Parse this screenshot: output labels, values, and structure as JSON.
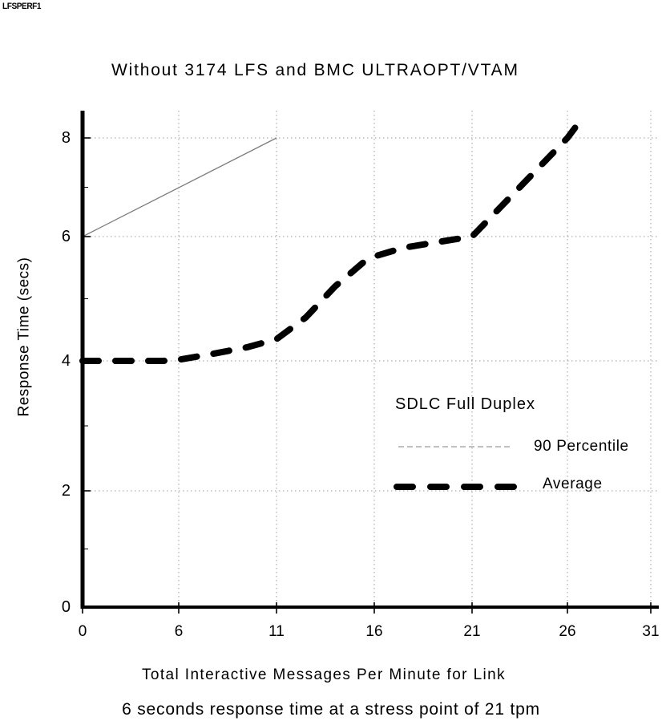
{
  "corner_label": "LFSPERF1",
  "chart_data": {
    "type": "line",
    "title": "Without 3174 LFS and BMC ULTRAOPT/VTAM",
    "xlabel": "Total Interactive Messages Per Minute for Link",
    "ylabel": "Response Time (secs)",
    "caption": "6 seconds response time at a stress point of 21 tpm",
    "x_ticks": [
      0,
      6,
      11,
      16,
      21,
      26,
      31
    ],
    "y_ticks": [
      0,
      2,
      4,
      6,
      8
    ],
    "xlim": [
      0,
      31
    ],
    "ylim": [
      0,
      8.5
    ],
    "grid": "dotted",
    "legend": {
      "header": "SDLC Full Duplex",
      "position": "inside-right",
      "items": [
        {
          "label": "90 Percentile",
          "style": "thin-solid"
        },
        {
          "label": "Average",
          "style": "thick-dashed"
        }
      ]
    },
    "series": [
      {
        "name": "90 Percentile",
        "style": "thin-solid",
        "points": [
          [
            0,
            6
          ],
          [
            11,
            8
          ]
        ]
      },
      {
        "name": "Average",
        "style": "thick-dashed",
        "points": [
          [
            0,
            4
          ],
          [
            5,
            4
          ],
          [
            6,
            4.02
          ],
          [
            7.5,
            4.1
          ],
          [
            9.5,
            4.22
          ],
          [
            11,
            4.35
          ],
          [
            12.5,
            4.7
          ],
          [
            14,
            5.2
          ],
          [
            15.5,
            5.6
          ],
          [
            16,
            5.68
          ],
          [
            17.5,
            5.82
          ],
          [
            19,
            5.9
          ],
          [
            21,
            6.0
          ],
          [
            26,
            8.0
          ],
          [
            26.6,
            8.27
          ]
        ]
      }
    ],
    "colors": {
      "axis": "#000000",
      "grid": "#9a9a9a",
      "percentile_line": "#7d7d7d",
      "average_line": "#000000",
      "background": "#ffffff"
    }
  }
}
